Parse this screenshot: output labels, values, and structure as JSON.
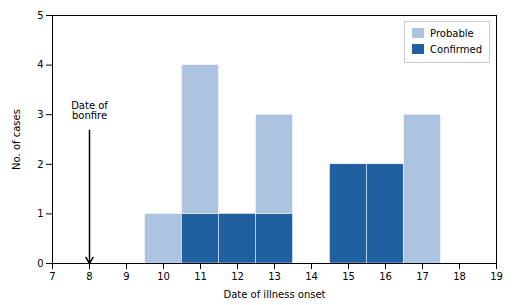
{
  "chart_data": {
    "type": "bar",
    "stacked": true,
    "x": [
      10,
      11,
      12,
      13,
      15,
      16,
      17
    ],
    "series": [
      {
        "name": "Confirmed",
        "color": "#2060a0",
        "values": [
          0,
          1,
          1,
          1,
          2,
          2,
          0
        ]
      },
      {
        "name": "Probable",
        "color": "#adc4e0",
        "values": [
          1,
          3,
          0,
          2,
          0,
          0,
          3
        ]
      }
    ],
    "xlabel": "Date of illness onset",
    "ylabel": "No. of cases",
    "xlim": [
      7,
      19
    ],
    "xticks": [
      7,
      8,
      9,
      10,
      11,
      12,
      13,
      14,
      15,
      16,
      17,
      18,
      19
    ],
    "ylim": [
      0,
      5
    ],
    "yticks": [
      0,
      1,
      2,
      3,
      4,
      5
    ],
    "legend": "upper right",
    "grid": false,
    "annotations": [
      {
        "text": "Date of\nbonfire",
        "x": 8,
        "y": 3.25,
        "arrow_x": 8,
        "arrow_y": 0
      }
    ]
  }
}
